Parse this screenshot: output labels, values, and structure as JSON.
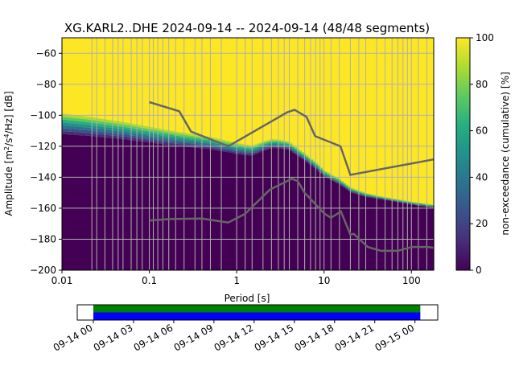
{
  "chart_data": [
    {
      "type": "heatmap",
      "title": "XG.KARL2..DHE   2024-09-14 -- 2024-09-14  (48/48 segments)",
      "xlabel": "Period [s]",
      "ylabel_parts": {
        "pre": "Amplitude [m",
        "sup1": "2",
        "mid": "/s",
        "sup2": "4",
        "post": "/Hz] [dB]"
      },
      "x_scale": "log",
      "xlim": [
        0.01,
        180
      ],
      "ylim": [
        -200,
        -50
      ],
      "x_ticks": [
        {
          "value": 0.01,
          "label": "0.01"
        },
        {
          "value": 0.1,
          "label": "0.1"
        },
        {
          "value": 1,
          "label": "1"
        },
        {
          "value": 10,
          "label": "10"
        },
        {
          "value": 100,
          "label": "100"
        }
      ],
      "y_ticks": [
        {
          "value": -60,
          "label": "−60"
        },
        {
          "value": -80,
          "label": "−80"
        },
        {
          "value": -100,
          "label": "−100"
        },
        {
          "value": -120,
          "label": "−120"
        },
        {
          "value": -140,
          "label": "−140"
        },
        {
          "value": -160,
          "label": "−160"
        },
        {
          "value": -180,
          "label": "−180"
        },
        {
          "value": -200,
          "label": "−200"
        }
      ],
      "grid": true,
      "colormap": "viridis",
      "colors": {
        "low": "#440154",
        "high": "#fde725",
        "model_line": "#666666",
        "grid": "#b0b0b0"
      },
      "colorbar": {
        "label": "non-exceedance (cumulative) [%]",
        "range": [
          0,
          100
        ],
        "ticks": [
          {
            "value": 0,
            "label": "0"
          },
          {
            "value": 20,
            "label": "20"
          },
          {
            "value": 40,
            "label": "40"
          },
          {
            "value": 60,
            "label": "60"
          },
          {
            "value": 80,
            "label": "80"
          },
          {
            "value": 100,
            "label": "100"
          }
        ]
      },
      "psd_boundary": {
        "period": [
          0.01,
          0.02,
          0.05,
          0.1,
          0.2,
          0.5,
          0.8,
          1,
          1.5,
          2,
          2.5,
          3,
          4,
          5,
          6,
          8,
          10,
          15,
          20,
          30,
          50,
          80,
          100,
          180
        ],
        "amplitude_db": [
          -114,
          -115,
          -117,
          -119,
          -121,
          -123,
          -125,
          -126,
          -127,
          -124,
          -122,
          -122,
          -123,
          -127,
          -130,
          -135,
          -140,
          -145,
          -150,
          -153,
          -155,
          -157,
          -158,
          -160
        ]
      },
      "psd_band_db": 15,
      "model_lines": [
        {
          "period": [
            0.1,
            0.22,
            0.3,
            0.8,
            3.8,
            4.6,
            6.3,
            7.9,
            15.4,
            20,
            180
          ],
          "amplitude_db": [
            -91.5,
            -97.4,
            -110.5,
            -120.0,
            -98.0,
            -96.5,
            -101.0,
            -113.5,
            -120.0,
            -138.5,
            -128.5
          ]
        },
        {
          "period": [
            0.1,
            0.17,
            0.4,
            0.8,
            1.24,
            2.4,
            4.3,
            5,
            6,
            10,
            12,
            15.6,
            20,
            21.9,
            31.6,
            45,
            70,
            101,
            154,
            180
          ],
          "amplitude_db": [
            -168,
            -167,
            -166.7,
            -169.2,
            -163.7,
            -148.0,
            -141.0,
            -142.5,
            -150,
            -163.3,
            -166.2,
            -162.1,
            -177,
            -176.6,
            -185,
            -187.5,
            -187.5,
            -185,
            -185,
            -185.5
          ]
        }
      ],
      "vertical_lines_period": [
        0.022,
        0.025,
        0.031,
        0.038,
        0.044,
        0.05,
        0.062,
        0.072,
        0.083,
        0.1,
        0.111,
        0.125,
        0.143,
        0.167,
        0.2,
        0.25,
        0.333,
        0.4,
        0.5,
        0.667,
        1,
        1.25,
        1.5,
        2,
        2.5,
        3,
        3.5,
        4,
        5,
        6,
        7,
        8,
        9,
        10,
        12,
        15,
        20,
        25,
        30,
        40,
        50,
        60,
        70,
        80,
        90,
        100,
        120,
        150
      ]
    },
    {
      "type": "timeline",
      "tick_labels": [
        "09-14 00",
        "09-14 03",
        "09-14 06",
        "09-14 09",
        "09-14 12",
        "09-14 15",
        "09-14 18",
        "09-14 21",
        "09-15 00"
      ],
      "tick_hours": [
        0,
        3,
        6,
        9,
        12,
        15,
        18,
        21,
        24
      ],
      "range_hours": [
        -1.2,
        25.7
      ],
      "bars": [
        {
          "start_hour": 0,
          "end_hour": 24.4,
          "color": "#008000"
        },
        {
          "start_hour": 0,
          "end_hour": 24.4,
          "color": "#0000ff"
        }
      ]
    }
  ]
}
